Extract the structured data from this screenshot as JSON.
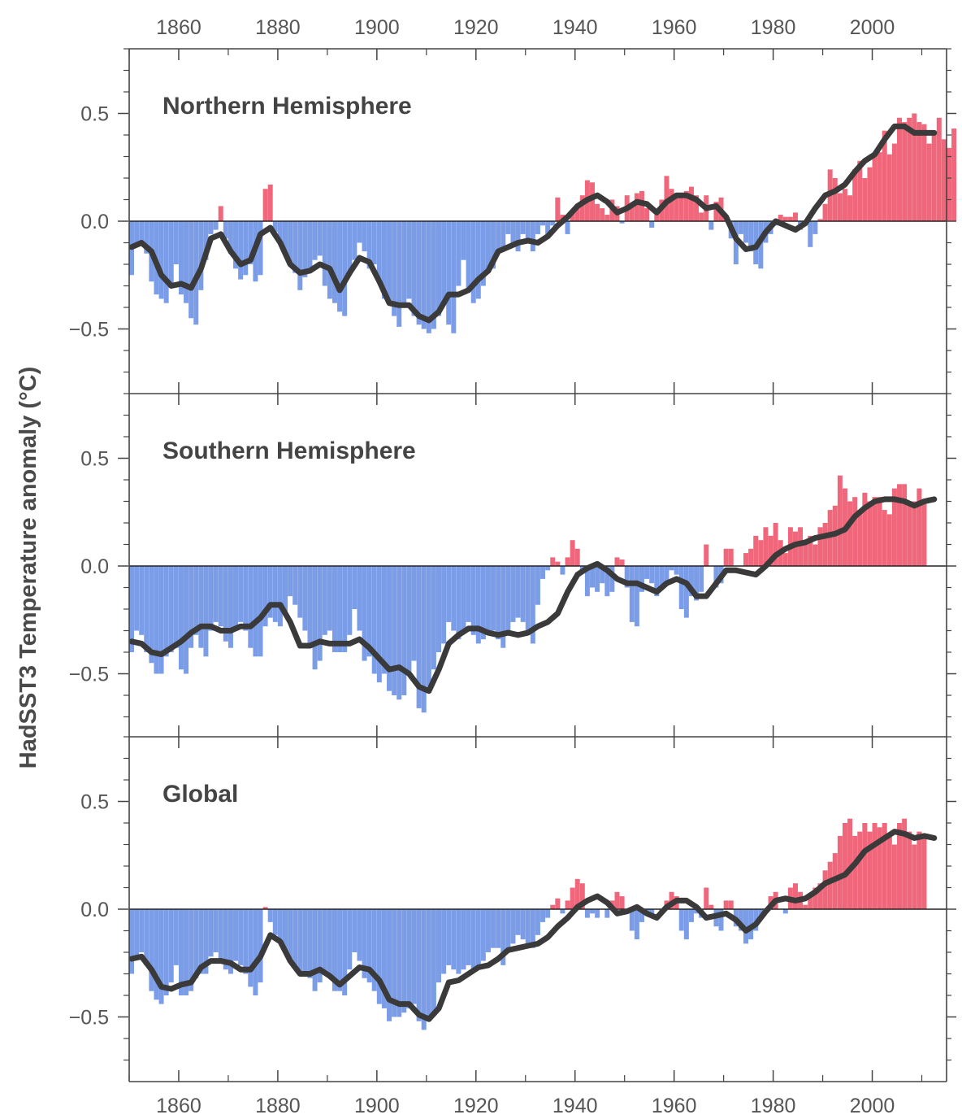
{
  "y_axis_title": "HadSST3 Temperature anomaly (°C)",
  "colors": {
    "positive": "#f0667a",
    "negative": "#7b9ce6",
    "smooth_line": "#3a3a3a",
    "frame": "#444444",
    "text": "#555555"
  },
  "x_tick_labels": [
    "1860",
    "1880",
    "1900",
    "1920",
    "1940",
    "1960",
    "1980",
    "2000"
  ],
  "y_tick_labels": [
    "0.5",
    "0.0",
    "−0.5"
  ],
  "chart_data": [
    {
      "type": "bar",
      "title": "Northern Hemisphere",
      "xlim": [
        1850,
        2015
      ],
      "ylim": [
        -0.8,
        0.8
      ],
      "x_ticks": [
        1860,
        1880,
        1900,
        1920,
        1940,
        1960,
        1980,
        2000
      ],
      "y_ticks": [
        0.5,
        0.0,
        -0.5
      ],
      "series": [
        {
          "kind": "annual_bars"
        },
        {
          "kind": "smoothed_line"
        }
      ],
      "annual_start": 1850,
      "annual_values": [
        -0.25,
        -0.12,
        -0.1,
        -0.15,
        -0.28,
        -0.34,
        -0.36,
        -0.38,
        -0.3,
        -0.2,
        -0.34,
        -0.38,
        -0.45,
        -0.48,
        -0.32,
        -0.18,
        -0.06,
        -0.04,
        0.07,
        -0.08,
        -0.15,
        -0.22,
        -0.27,
        -0.25,
        -0.2,
        -0.28,
        -0.25,
        0.15,
        0.17,
        -0.05,
        -0.1,
        -0.15,
        -0.2,
        -0.24,
        -0.32,
        -0.26,
        -0.22,
        -0.18,
        -0.16,
        -0.3,
        -0.36,
        -0.38,
        -0.42,
        -0.44,
        -0.24,
        -0.18,
        -0.1,
        -0.14,
        -0.22,
        -0.2,
        -0.28,
        -0.36,
        -0.38,
        -0.44,
        -0.49,
        -0.4,
        -0.36,
        -0.44,
        -0.48,
        -0.5,
        -0.52,
        -0.5,
        -0.44,
        -0.38,
        -0.48,
        -0.52,
        -0.3,
        -0.18,
        -0.32,
        -0.38,
        -0.36,
        -0.3,
        -0.24,
        -0.22,
        -0.14,
        -0.12,
        -0.06,
        -0.12,
        -0.14,
        -0.06,
        -0.08,
        -0.14,
        -0.06,
        -0.02,
        -0.08,
        -0.02,
        0.11,
        0.03,
        -0.06,
        0.04,
        0.08,
        0.12,
        0.19,
        0.18,
        0.08,
        0.06,
        0.03,
        0.1,
        0.07,
        -0.01,
        0.12,
        0.08,
        0.13,
        0.14,
        0.06,
        -0.03,
        0.03,
        0.1,
        0.21,
        0.15,
        0.13,
        0.12,
        0.14,
        0.16,
        0.12,
        0.04,
        0.12,
        -0.04,
        0.09,
        0.11,
        0.02,
        -0.08,
        -0.2,
        -0.06,
        -0.1,
        -0.14,
        -0.2,
        -0.22,
        -0.1,
        -0.06,
        -0.02,
        0.03,
        0.02,
        0.02,
        0.04,
        -0.04,
        -0.02,
        -0.12,
        -0.06,
        0.01,
        0.08,
        0.24,
        0.2,
        0.13,
        0.15,
        0.12,
        0.24,
        0.28,
        0.2,
        0.25,
        0.3,
        0.32,
        0.42,
        0.31,
        0.36,
        0.48,
        0.46,
        0.48,
        0.5,
        0.46,
        0.45,
        0.36,
        0.42,
        0.48,
        0.38,
        0.34,
        0.43
      ],
      "smooth_x": [
        1850,
        1852,
        1854,
        1856,
        1858,
        1860,
        1862,
        1864,
        1866,
        1868,
        1870,
        1872,
        1874,
        1876,
        1878,
        1880,
        1882,
        1884,
        1886,
        1888,
        1890,
        1892,
        1894,
        1896,
        1898,
        1900,
        1902,
        1904,
        1906,
        1908,
        1910,
        1912,
        1914,
        1916,
        1918,
        1920,
        1922,
        1924,
        1926,
        1928,
        1930,
        1932,
        1934,
        1936,
        1938,
        1940,
        1942,
        1944,
        1946,
        1948,
        1950,
        1952,
        1954,
        1956,
        1958,
        1960,
        1962,
        1964,
        1966,
        1968,
        1970,
        1972,
        1974,
        1976,
        1978,
        1980,
        1982,
        1984,
        1986,
        1988,
        1990,
        1992,
        1994,
        1996,
        1998,
        2000,
        2002,
        2004,
        2006,
        2008,
        2010,
        2012
      ],
      "smooth_y": [
        -0.12,
        -0.1,
        -0.14,
        -0.25,
        -0.3,
        -0.29,
        -0.31,
        -0.22,
        -0.08,
        -0.06,
        -0.14,
        -0.2,
        -0.18,
        -0.06,
        -0.03,
        -0.1,
        -0.2,
        -0.24,
        -0.23,
        -0.2,
        -0.22,
        -0.32,
        -0.24,
        -0.17,
        -0.19,
        -0.28,
        -0.38,
        -0.39,
        -0.39,
        -0.44,
        -0.46,
        -0.42,
        -0.34,
        -0.34,
        -0.32,
        -0.27,
        -0.23,
        -0.14,
        -0.12,
        -0.1,
        -0.09,
        -0.1,
        -0.07,
        -0.02,
        0.02,
        0.07,
        0.1,
        0.12,
        0.09,
        0.04,
        0.06,
        0.09,
        0.08,
        0.04,
        0.09,
        0.12,
        0.12,
        0.1,
        0.06,
        0.07,
        0.02,
        -0.08,
        -0.13,
        -0.12,
        -0.05,
        0.0,
        -0.02,
        -0.04,
        -0.01,
        0.06,
        0.12,
        0.14,
        0.17,
        0.23,
        0.28,
        0.31,
        0.38,
        0.44,
        0.44,
        0.41,
        0.41,
        0.41
      ]
    },
    {
      "type": "bar",
      "title": "Southern Hemisphere",
      "xlim": [
        1850,
        2015
      ],
      "ylim": [
        -0.8,
        0.8
      ],
      "x_ticks": [
        1860,
        1880,
        1900,
        1920,
        1940,
        1960,
        1980,
        2000
      ],
      "y_ticks": [
        0.5,
        0.0,
        -0.5
      ],
      "series": [
        {
          "kind": "annual_bars"
        },
        {
          "kind": "smoothed_line"
        }
      ],
      "annual_start": 1850,
      "annual_values": [
        -0.4,
        -0.3,
        -0.32,
        -0.4,
        -0.45,
        -0.5,
        -0.5,
        -0.42,
        -0.4,
        -0.38,
        -0.48,
        -0.5,
        -0.38,
        -0.32,
        -0.38,
        -0.42,
        -0.3,
        -0.26,
        -0.28,
        -0.35,
        -0.38,
        -0.3,
        -0.26,
        -0.3,
        -0.38,
        -0.42,
        -0.42,
        -0.28,
        -0.24,
        -0.26,
        -0.28,
        -0.22,
        -0.14,
        -0.18,
        -0.24,
        -0.3,
        -0.36,
        -0.48,
        -0.44,
        -0.32,
        -0.3,
        -0.4,
        -0.4,
        -0.4,
        -0.32,
        -0.2,
        -0.3,
        -0.44,
        -0.42,
        -0.5,
        -0.54,
        -0.5,
        -0.58,
        -0.6,
        -0.62,
        -0.6,
        -0.5,
        -0.44,
        -0.66,
        -0.68,
        -0.56,
        -0.48,
        -0.4,
        -0.36,
        -0.26,
        -0.3,
        -0.34,
        -0.3,
        -0.26,
        -0.32,
        -0.36,
        -0.34,
        -0.32,
        -0.3,
        -0.34,
        -0.38,
        -0.3,
        -0.26,
        -0.24,
        -0.26,
        -0.3,
        -0.36,
        -0.18,
        -0.06,
        -0.02,
        0.04,
        0.02,
        -0.04,
        0.04,
        0.12,
        0.08,
        -0.02,
        -0.14,
        -0.1,
        -0.12,
        -0.08,
        -0.14,
        -0.12,
        0.04,
        0.03,
        -0.1,
        -0.26,
        -0.28,
        -0.12,
        -0.06,
        -0.08,
        -0.14,
        -0.1,
        -0.08,
        -0.02,
        -0.04,
        -0.2,
        -0.24,
        -0.14,
        -0.16,
        -0.12,
        0.1,
        0.0,
        -0.1,
        -0.08,
        0.08,
        0.08,
        0.0,
        0.0,
        0.06,
        0.08,
        0.14,
        0.12,
        0.18,
        0.14,
        0.2,
        0.12,
        0.06,
        0.18,
        0.16,
        0.18,
        0.12,
        0.14,
        0.1,
        0.18,
        0.2,
        0.26,
        0.28,
        0.42,
        0.36,
        0.3,
        0.32,
        0.26,
        0.34,
        0.3,
        0.32,
        0.32,
        0.26,
        0.24,
        0.36,
        0.38,
        0.38,
        0.28,
        0.3,
        0.36,
        0.3
      ],
      "smooth_x": [
        1850,
        1852,
        1854,
        1856,
        1858,
        1860,
        1862,
        1864,
        1866,
        1868,
        1870,
        1872,
        1874,
        1876,
        1878,
        1880,
        1882,
        1884,
        1886,
        1888,
        1890,
        1892,
        1894,
        1896,
        1898,
        1900,
        1902,
        1904,
        1906,
        1908,
        1910,
        1912,
        1914,
        1916,
        1918,
        1920,
        1922,
        1924,
        1926,
        1928,
        1930,
        1932,
        1934,
        1936,
        1938,
        1940,
        1942,
        1944,
        1946,
        1948,
        1950,
        1952,
        1954,
        1956,
        1958,
        1960,
        1962,
        1964,
        1966,
        1968,
        1970,
        1972,
        1974,
        1976,
        1978,
        1980,
        1982,
        1984,
        1986,
        1988,
        1990,
        1992,
        1994,
        1996,
        1998,
        2000,
        2002,
        2004,
        2006,
        2008,
        2010,
        2012
      ],
      "smooth_y": [
        -0.35,
        -0.36,
        -0.4,
        -0.41,
        -0.38,
        -0.35,
        -0.31,
        -0.28,
        -0.28,
        -0.3,
        -0.3,
        -0.28,
        -0.28,
        -0.24,
        -0.18,
        -0.18,
        -0.26,
        -0.37,
        -0.37,
        -0.35,
        -0.36,
        -0.36,
        -0.36,
        -0.34,
        -0.38,
        -0.43,
        -0.48,
        -0.47,
        -0.5,
        -0.56,
        -0.58,
        -0.48,
        -0.36,
        -0.32,
        -0.29,
        -0.29,
        -0.31,
        -0.32,
        -0.31,
        -0.32,
        -0.31,
        -0.28,
        -0.26,
        -0.22,
        -0.12,
        -0.04,
        -0.01,
        0.01,
        -0.02,
        -0.06,
        -0.08,
        -0.08,
        -0.1,
        -0.12,
        -0.08,
        -0.06,
        -0.08,
        -0.14,
        -0.14,
        -0.08,
        -0.02,
        -0.02,
        -0.03,
        -0.04,
        0.0,
        0.05,
        0.08,
        0.1,
        0.11,
        0.13,
        0.14,
        0.15,
        0.17,
        0.23,
        0.27,
        0.3,
        0.31,
        0.31,
        0.3,
        0.28,
        0.3,
        0.31
      ]
    },
    {
      "type": "bar",
      "title": "Global",
      "xlim": [
        1850,
        2015
      ],
      "ylim": [
        -0.8,
        0.8
      ],
      "x_ticks": [
        1860,
        1880,
        1900,
        1920,
        1940,
        1960,
        1980,
        2000
      ],
      "y_ticks": [
        0.5,
        0.0,
        -0.5
      ],
      "series": [
        {
          "kind": "annual_bars"
        },
        {
          "kind": "smoothed_line"
        }
      ],
      "annual_start": 1850,
      "annual_values": [
        -0.3,
        -0.22,
        -0.2,
        -0.26,
        -0.38,
        -0.42,
        -0.44,
        -0.4,
        -0.34,
        -0.26,
        -0.4,
        -0.4,
        -0.38,
        -0.32,
        -0.3,
        -0.3,
        -0.22,
        -0.2,
        -0.24,
        -0.28,
        -0.3,
        -0.24,
        -0.26,
        -0.3,
        -0.36,
        -0.4,
        -0.34,
        0.01,
        -0.06,
        -0.12,
        -0.14,
        -0.2,
        -0.24,
        -0.26,
        -0.3,
        -0.3,
        -0.32,
        -0.38,
        -0.34,
        -0.3,
        -0.32,
        -0.38,
        -0.38,
        -0.4,
        -0.28,
        -0.2,
        -0.24,
        -0.32,
        -0.34,
        -0.38,
        -0.44,
        -0.46,
        -0.52,
        -0.5,
        -0.5,
        -0.48,
        -0.46,
        -0.44,
        -0.52,
        -0.56,
        -0.52,
        -0.48,
        -0.34,
        -0.3,
        -0.26,
        -0.28,
        -0.3,
        -0.28,
        -0.26,
        -0.28,
        -0.26,
        -0.24,
        -0.2,
        -0.18,
        -0.18,
        -0.26,
        -0.2,
        -0.16,
        -0.12,
        -0.14,
        -0.16,
        -0.18,
        -0.12,
        -0.06,
        -0.04,
        0.02,
        0.05,
        -0.02,
        0.04,
        0.1,
        0.14,
        0.12,
        -0.04,
        -0.02,
        -0.04,
        0.0,
        -0.04,
        0.04,
        0.08,
        0.06,
        -0.02,
        -0.1,
        -0.14,
        -0.06,
        -0.02,
        -0.02,
        0.0,
        -0.02,
        0.04,
        0.08,
        0.06,
        -0.1,
        -0.14,
        -0.06,
        -0.02,
        -0.04,
        0.1,
        0.02,
        -0.08,
        -0.1,
        0.04,
        0.04,
        -0.08,
        -0.1,
        -0.16,
        -0.14,
        -0.1,
        -0.04,
        0.0,
        0.06,
        0.08,
        0.0,
        -0.02,
        0.1,
        0.12,
        0.08,
        0.02,
        0.06,
        0.1,
        0.12,
        0.18,
        0.22,
        0.26,
        0.34,
        0.4,
        0.42,
        0.34,
        0.36,
        0.4,
        0.36,
        0.4,
        0.38,
        0.4,
        0.34,
        0.3,
        0.4,
        0.42,
        0.36,
        0.3,
        0.36,
        0.34
      ],
      "smooth_x": [
        1850,
        1852,
        1854,
        1856,
        1858,
        1860,
        1862,
        1864,
        1866,
        1868,
        1870,
        1872,
        1874,
        1876,
        1878,
        1880,
        1882,
        1884,
        1886,
        1888,
        1890,
        1892,
        1894,
        1896,
        1898,
        1900,
        1902,
        1904,
        1906,
        1908,
        1910,
        1912,
        1914,
        1916,
        1918,
        1920,
        1922,
        1924,
        1926,
        1928,
        1930,
        1932,
        1934,
        1936,
        1938,
        1940,
        1942,
        1944,
        1946,
        1948,
        1950,
        1952,
        1954,
        1956,
        1958,
        1960,
        1962,
        1964,
        1966,
        1968,
        1970,
        1972,
        1974,
        1976,
        1978,
        1980,
        1982,
        1984,
        1986,
        1988,
        1990,
        1992,
        1994,
        1996,
        1998,
        2000,
        2002,
        2004,
        2006,
        2008,
        2010,
        2012
      ],
      "smooth_y": [
        -0.23,
        -0.22,
        -0.28,
        -0.36,
        -0.37,
        -0.35,
        -0.34,
        -0.27,
        -0.24,
        -0.24,
        -0.25,
        -0.28,
        -0.28,
        -0.22,
        -0.12,
        -0.15,
        -0.24,
        -0.3,
        -0.3,
        -0.28,
        -0.31,
        -0.35,
        -0.31,
        -0.27,
        -0.28,
        -0.33,
        -0.42,
        -0.44,
        -0.44,
        -0.49,
        -0.51,
        -0.46,
        -0.34,
        -0.33,
        -0.3,
        -0.27,
        -0.26,
        -0.23,
        -0.19,
        -0.18,
        -0.17,
        -0.16,
        -0.13,
        -0.08,
        -0.04,
        0.01,
        0.04,
        0.06,
        0.03,
        -0.02,
        -0.01,
        0.01,
        -0.02,
        -0.04,
        0.01,
        0.04,
        0.04,
        0.01,
        -0.04,
        -0.03,
        -0.02,
        -0.05,
        -0.1,
        -0.07,
        -0.01,
        0.04,
        0.05,
        0.04,
        0.05,
        0.08,
        0.12,
        0.14,
        0.16,
        0.21,
        0.27,
        0.3,
        0.33,
        0.36,
        0.35,
        0.33,
        0.34,
        0.33
      ]
    }
  ]
}
